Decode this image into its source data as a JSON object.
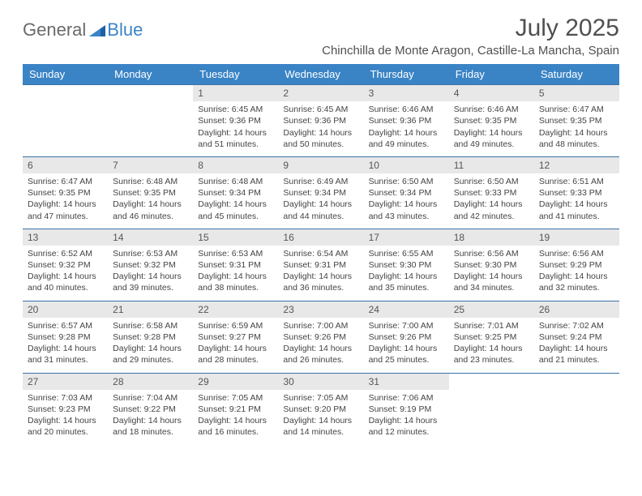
{
  "brand": {
    "part1": "General",
    "part2": "Blue"
  },
  "title": "July 2025",
  "location": "Chinchilla de Monte Aragon, Castille-La Mancha, Spain",
  "columns": [
    "Sunday",
    "Monday",
    "Tuesday",
    "Wednesday",
    "Thursday",
    "Friday",
    "Saturday"
  ],
  "colors": {
    "header_bg": "#3a84c6",
    "header_text": "#ffffff",
    "row_border": "#3a72a8",
    "daynum_bg": "#e8e8e8",
    "text": "#444444",
    "title_text": "#505050",
    "logo_gray": "#6a6a6a",
    "logo_blue": "#3a84c6",
    "page_bg": "#ffffff"
  },
  "typography": {
    "title_fontsize": 30,
    "location_fontsize": 15,
    "header_fontsize": 13,
    "cell_fontsize": 10.5,
    "daynum_fontsize": 12
  },
  "weeks": [
    [
      null,
      null,
      {
        "n": "1",
        "sunrise": "6:45 AM",
        "sunset": "9:36 PM",
        "dl1": "Daylight: 14 hours",
        "dl2": "and 51 minutes."
      },
      {
        "n": "2",
        "sunrise": "6:45 AM",
        "sunset": "9:36 PM",
        "dl1": "Daylight: 14 hours",
        "dl2": "and 50 minutes."
      },
      {
        "n": "3",
        "sunrise": "6:46 AM",
        "sunset": "9:36 PM",
        "dl1": "Daylight: 14 hours",
        "dl2": "and 49 minutes."
      },
      {
        "n": "4",
        "sunrise": "6:46 AM",
        "sunset": "9:35 PM",
        "dl1": "Daylight: 14 hours",
        "dl2": "and 49 minutes."
      },
      {
        "n": "5",
        "sunrise": "6:47 AM",
        "sunset": "9:35 PM",
        "dl1": "Daylight: 14 hours",
        "dl2": "and 48 minutes."
      }
    ],
    [
      {
        "n": "6",
        "sunrise": "6:47 AM",
        "sunset": "9:35 PM",
        "dl1": "Daylight: 14 hours",
        "dl2": "and 47 minutes."
      },
      {
        "n": "7",
        "sunrise": "6:48 AM",
        "sunset": "9:35 PM",
        "dl1": "Daylight: 14 hours",
        "dl2": "and 46 minutes."
      },
      {
        "n": "8",
        "sunrise": "6:48 AM",
        "sunset": "9:34 PM",
        "dl1": "Daylight: 14 hours",
        "dl2": "and 45 minutes."
      },
      {
        "n": "9",
        "sunrise": "6:49 AM",
        "sunset": "9:34 PM",
        "dl1": "Daylight: 14 hours",
        "dl2": "and 44 minutes."
      },
      {
        "n": "10",
        "sunrise": "6:50 AM",
        "sunset": "9:34 PM",
        "dl1": "Daylight: 14 hours",
        "dl2": "and 43 minutes."
      },
      {
        "n": "11",
        "sunrise": "6:50 AM",
        "sunset": "9:33 PM",
        "dl1": "Daylight: 14 hours",
        "dl2": "and 42 minutes."
      },
      {
        "n": "12",
        "sunrise": "6:51 AM",
        "sunset": "9:33 PM",
        "dl1": "Daylight: 14 hours",
        "dl2": "and 41 minutes."
      }
    ],
    [
      {
        "n": "13",
        "sunrise": "6:52 AM",
        "sunset": "9:32 PM",
        "dl1": "Daylight: 14 hours",
        "dl2": "and 40 minutes."
      },
      {
        "n": "14",
        "sunrise": "6:53 AM",
        "sunset": "9:32 PM",
        "dl1": "Daylight: 14 hours",
        "dl2": "and 39 minutes."
      },
      {
        "n": "15",
        "sunrise": "6:53 AM",
        "sunset": "9:31 PM",
        "dl1": "Daylight: 14 hours",
        "dl2": "and 38 minutes."
      },
      {
        "n": "16",
        "sunrise": "6:54 AM",
        "sunset": "9:31 PM",
        "dl1": "Daylight: 14 hours",
        "dl2": "and 36 minutes."
      },
      {
        "n": "17",
        "sunrise": "6:55 AM",
        "sunset": "9:30 PM",
        "dl1": "Daylight: 14 hours",
        "dl2": "and 35 minutes."
      },
      {
        "n": "18",
        "sunrise": "6:56 AM",
        "sunset": "9:30 PM",
        "dl1": "Daylight: 14 hours",
        "dl2": "and 34 minutes."
      },
      {
        "n": "19",
        "sunrise": "6:56 AM",
        "sunset": "9:29 PM",
        "dl1": "Daylight: 14 hours",
        "dl2": "and 32 minutes."
      }
    ],
    [
      {
        "n": "20",
        "sunrise": "6:57 AM",
        "sunset": "9:28 PM",
        "dl1": "Daylight: 14 hours",
        "dl2": "and 31 minutes."
      },
      {
        "n": "21",
        "sunrise": "6:58 AM",
        "sunset": "9:28 PM",
        "dl1": "Daylight: 14 hours",
        "dl2": "and 29 minutes."
      },
      {
        "n": "22",
        "sunrise": "6:59 AM",
        "sunset": "9:27 PM",
        "dl1": "Daylight: 14 hours",
        "dl2": "and 28 minutes."
      },
      {
        "n": "23",
        "sunrise": "7:00 AM",
        "sunset": "9:26 PM",
        "dl1": "Daylight: 14 hours",
        "dl2": "and 26 minutes."
      },
      {
        "n": "24",
        "sunrise": "7:00 AM",
        "sunset": "9:26 PM",
        "dl1": "Daylight: 14 hours",
        "dl2": "and 25 minutes."
      },
      {
        "n": "25",
        "sunrise": "7:01 AM",
        "sunset": "9:25 PM",
        "dl1": "Daylight: 14 hours",
        "dl2": "and 23 minutes."
      },
      {
        "n": "26",
        "sunrise": "7:02 AM",
        "sunset": "9:24 PM",
        "dl1": "Daylight: 14 hours",
        "dl2": "and 21 minutes."
      }
    ],
    [
      {
        "n": "27",
        "sunrise": "7:03 AM",
        "sunset": "9:23 PM",
        "dl1": "Daylight: 14 hours",
        "dl2": "and 20 minutes."
      },
      {
        "n": "28",
        "sunrise": "7:04 AM",
        "sunset": "9:22 PM",
        "dl1": "Daylight: 14 hours",
        "dl2": "and 18 minutes."
      },
      {
        "n": "29",
        "sunrise": "7:05 AM",
        "sunset": "9:21 PM",
        "dl1": "Daylight: 14 hours",
        "dl2": "and 16 minutes."
      },
      {
        "n": "30",
        "sunrise": "7:05 AM",
        "sunset": "9:20 PM",
        "dl1": "Daylight: 14 hours",
        "dl2": "and 14 minutes."
      },
      {
        "n": "31",
        "sunrise": "7:06 AM",
        "sunset": "9:19 PM",
        "dl1": "Daylight: 14 hours",
        "dl2": "and 12 minutes."
      },
      null,
      null
    ]
  ]
}
